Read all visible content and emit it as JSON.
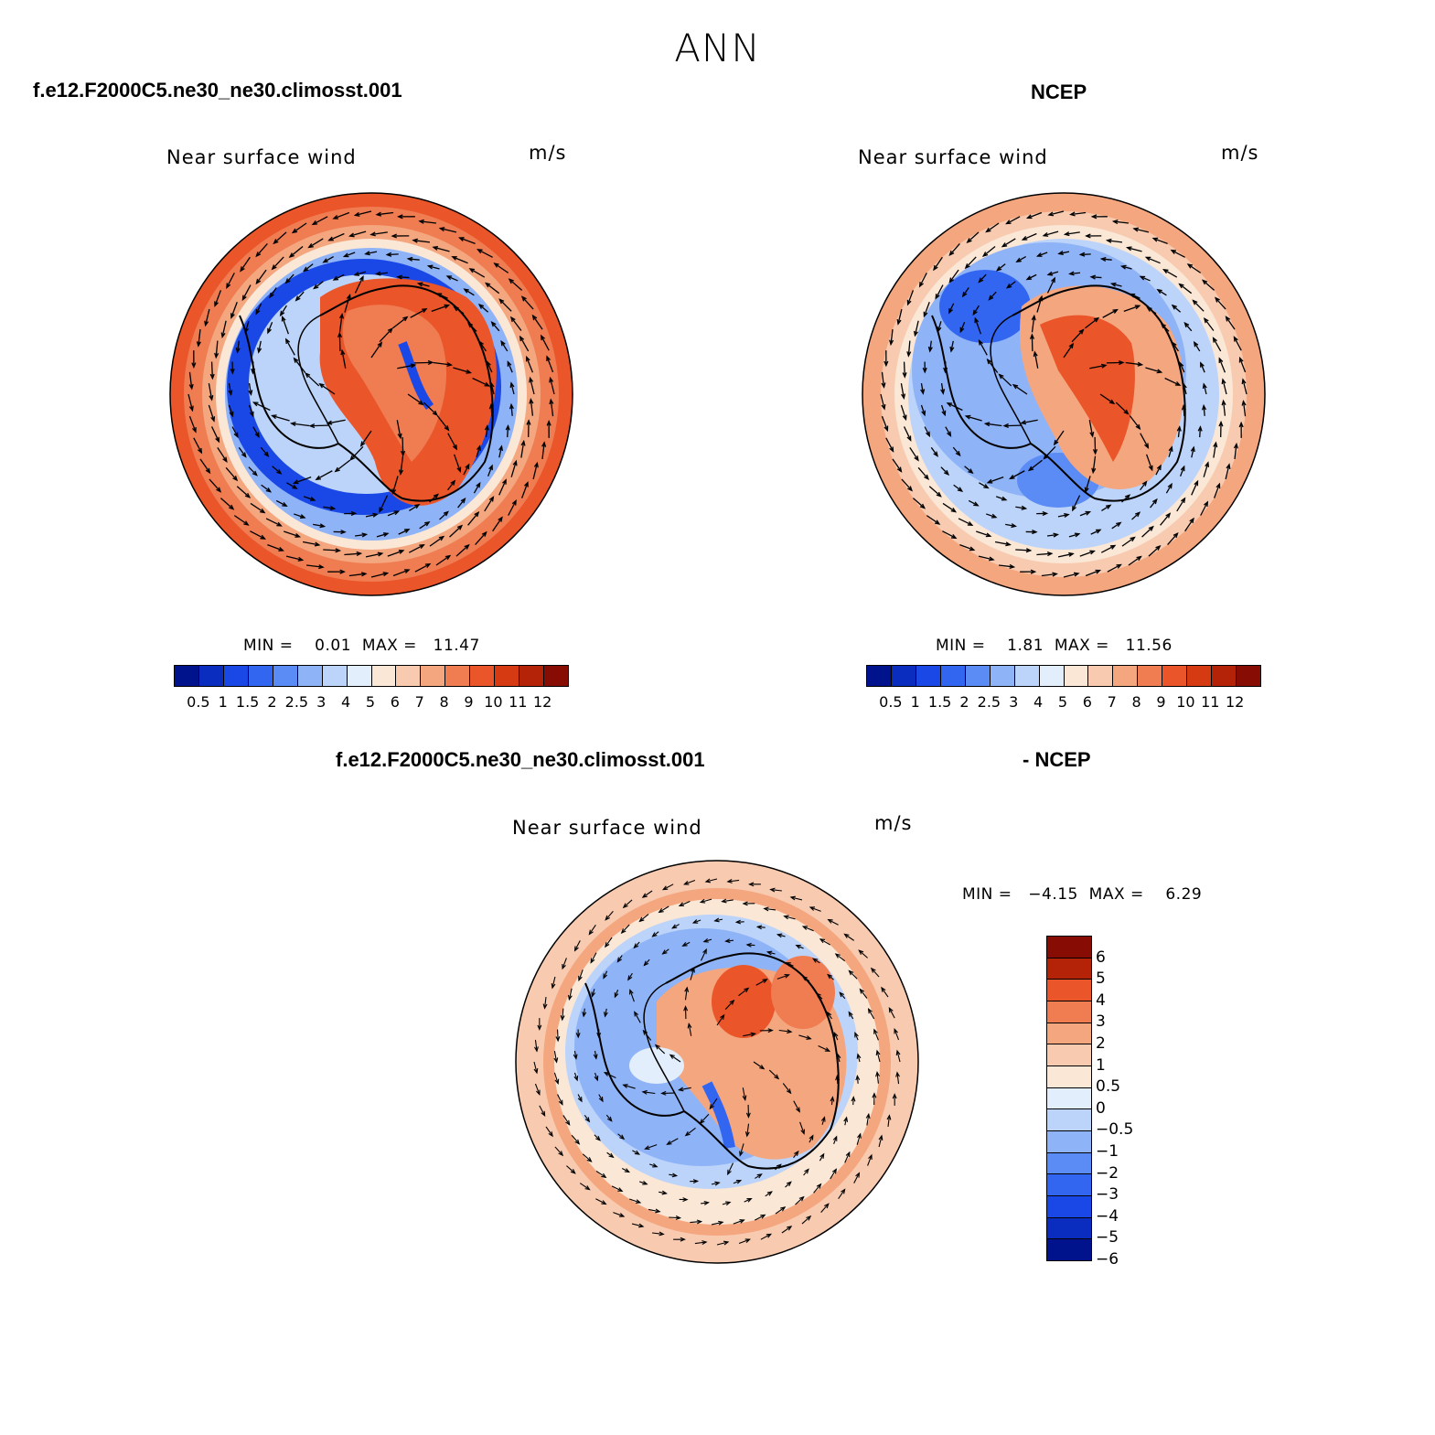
{
  "title": "ANN",
  "panels": [
    {
      "case_title": "f.e12.F2000C5.ne30_ne30.climosst.001",
      "label": "Near surface wind",
      "units": "m/s",
      "stats": "MIN =    0.01  MAX =   11.47"
    },
    {
      "case_title": "NCEP",
      "label": "Near surface wind",
      "units": "m/s",
      "stats": "MIN =    1.81  MAX =   11.56"
    },
    {
      "case_title_left": "f.e12.F2000C5.ne30_ne30.climosst.001",
      "case_title_right": "- NCEP",
      "label": "Near surface wind",
      "units": "m/s",
      "stats": "MIN =   −4.15  MAX =    6.29"
    }
  ],
  "colorbar_abs": {
    "colors": [
      "#00138c",
      "#0a2dc0",
      "#1a48e6",
      "#3366f0",
      "#5b8bf4",
      "#8fb3f7",
      "#bcd4fa",
      "#e2eefb",
      "#fbe7d6",
      "#f8cbb0",
      "#f4a67f",
      "#f07c52",
      "#ea5529",
      "#d63a12",
      "#b42308",
      "#870d04"
    ],
    "ticks": [
      "0.5",
      "1",
      "1.5",
      "2",
      "2.5",
      "3",
      "4",
      "5",
      "6",
      "7",
      "8",
      "9",
      "10",
      "11",
      "12"
    ]
  },
  "colorbar_diff": {
    "colors": [
      "#870d04",
      "#b42308",
      "#ea5529",
      "#f07c52",
      "#f4a67f",
      "#f8cbb0",
      "#fbe7d6",
      "#e2eefb",
      "#bcd4fa",
      "#8fb3f7",
      "#5b8bf4",
      "#3366f0",
      "#1a48e6",
      "#0a2dc0",
      "#00138c"
    ],
    "ticks": [
      "6",
      "5",
      "4",
      "3",
      "2",
      "1",
      "0.5",
      "0",
      "−0.5",
      "−1",
      "−2",
      "−3",
      "−4",
      "−5",
      "−6"
    ]
  }
}
